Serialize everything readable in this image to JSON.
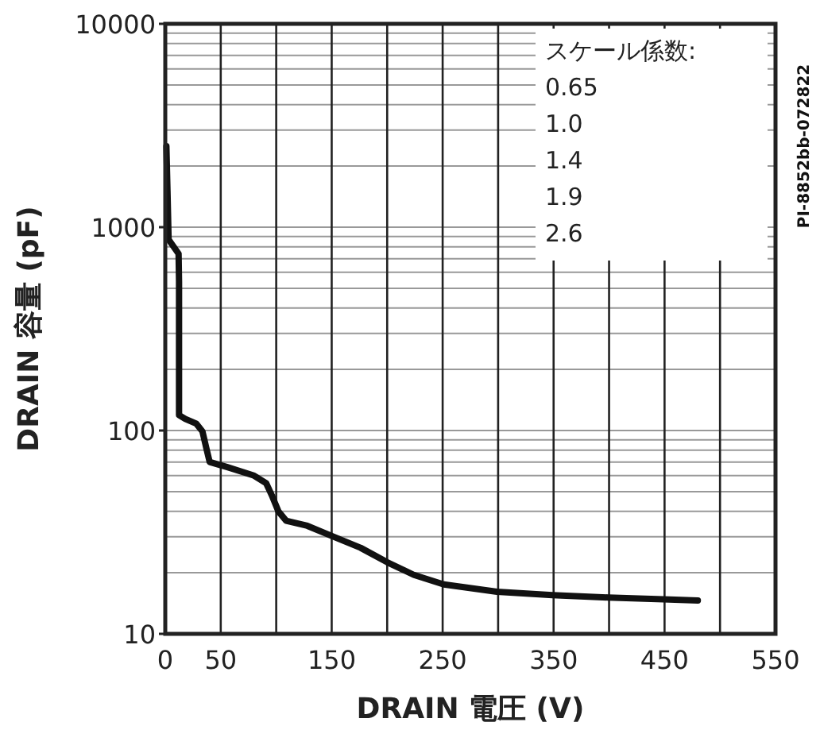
{
  "chart_data": {
    "type": "line",
    "xlabel": "DRAIN 電圧 (V)",
    "ylabel": "DRAIN 容量 (pF)",
    "x": [
      1,
      2,
      3,
      12,
      12.4,
      12.4,
      18,
      28,
      33.5,
      37,
      40,
      56,
      80,
      91,
      96,
      102,
      109,
      128,
      152,
      176,
      200,
      224,
      251,
      299,
      349,
      399,
      449,
      480
    ],
    "series": [
      {
        "color": "#111111",
        "values": [
          2500,
          1500,
          870,
          740,
          540,
          119,
          114,
          108,
          99,
          82,
          70,
          66,
          60,
          55,
          48,
          40,
          36,
          34,
          30,
          26.5,
          22.5,
          19.5,
          17.5,
          16.1,
          15.5,
          15.1,
          14.8,
          14.6
        ]
      }
    ],
    "log": "y",
    "grid": true,
    "marker": "none",
    "line_style": "solid",
    "xlim": [
      0,
      550
    ],
    "ylim": [
      10,
      10000
    ],
    "xticks": [
      0,
      50,
      {
        "value": 100,
        "label": null
      },
      150,
      {
        "value": 200,
        "label": null
      },
      250,
      {
        "value": 300,
        "label": null
      },
      350,
      {
        "value": 400,
        "label": null
      },
      450,
      {
        "value": 500,
        "label": null
      },
      550
    ],
    "yticks": [
      10,
      100,
      1000,
      10000
    ],
    "annotations": [
      "スケール係数:",
      "0.65",
      "1.0",
      "1.4",
      "1.9",
      "2.6",
      "PI-8852bb-072822"
    ]
  }
}
